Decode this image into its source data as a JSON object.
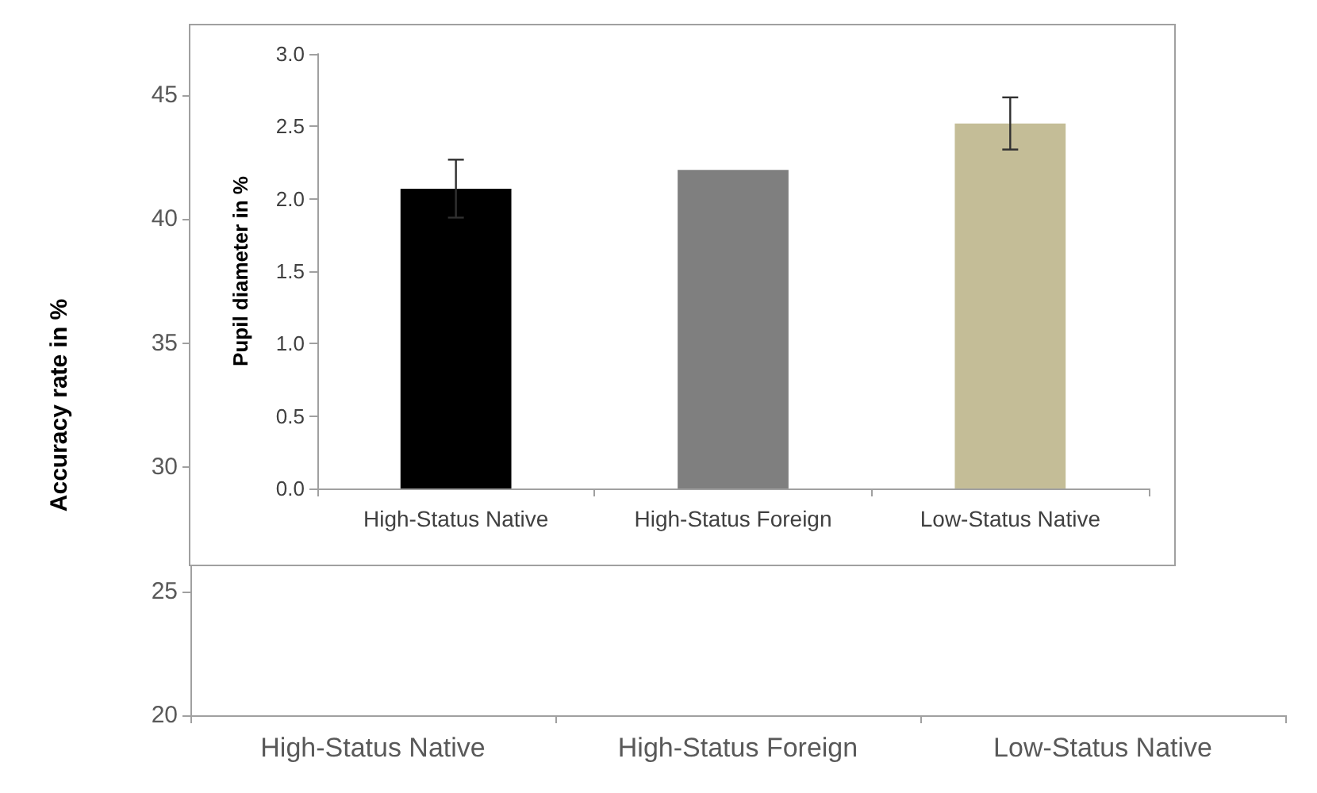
{
  "chart_data": [
    {
      "type": "bar",
      "ylabel": "Accuracy rate in %",
      "categories": [
        "High-Status Native",
        "High-Status Foreign",
        "Low-Status Native"
      ],
      "values": [
        null,
        null,
        null
      ],
      "colors": [
        "#000000",
        "#7f7f7f",
        "#aaa7a4"
      ],
      "ylim": [
        20,
        45
      ],
      "yticks": [
        20,
        25,
        30,
        35,
        40,
        45
      ],
      "grid": false
    },
    {
      "type": "bar",
      "ylabel": "Pupil diameter in %",
      "categories": [
        "High-Status Native",
        "High-Status Foreign",
        "Low-Status Native"
      ],
      "values": [
        2.07,
        2.2,
        2.52
      ],
      "errors": [
        0.2,
        null,
        0.18
      ],
      "colors": [
        "#000000",
        "#7f7f7f",
        "#c4bd97"
      ],
      "ylim": [
        0,
        3
      ],
      "yticks": [
        {
          "value": 0,
          "label": "0.0"
        },
        0.5,
        {
          "value": 1,
          "label": "1.0"
        },
        1.5,
        {
          "value": 2,
          "label": "2.0"
        },
        2.5,
        {
          "value": 3,
          "label": "3.0"
        }
      ],
      "grid": false
    }
  ]
}
